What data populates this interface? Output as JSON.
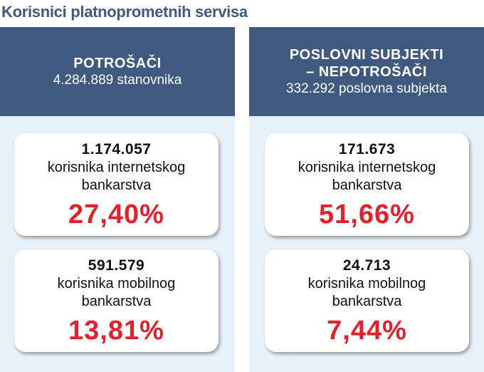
{
  "title": "Korisnici platnoprometnih servisa",
  "columns": [
    {
      "title_lines": [
        "POTROŠAČI"
      ],
      "subtitle": "4.284.889 stanovnika",
      "cards": [
        {
          "number": "1.174.057",
          "label_lines": [
            "korisnika internetskog",
            "bankarstva"
          ],
          "percent": "27,40%"
        },
        {
          "number": "591.579",
          "label_lines": [
            "korisnika mobilnog",
            "bankarstva"
          ],
          "percent": "13,81%"
        }
      ]
    },
    {
      "title_lines": [
        "POSLOVNI SUBJEKTI",
        "– NEPOTROŠAČI"
      ],
      "subtitle": "332.292 poslovna subjekta",
      "cards": [
        {
          "number": "171.673",
          "label_lines": [
            "korisnika internetskog",
            "bankarstva"
          ],
          "percent": "51,66%"
        },
        {
          "number": "24.713",
          "label_lines": [
            "korisnika mobilnog",
            "bankarstva"
          ],
          "percent": "7,44%"
        }
      ]
    }
  ]
}
